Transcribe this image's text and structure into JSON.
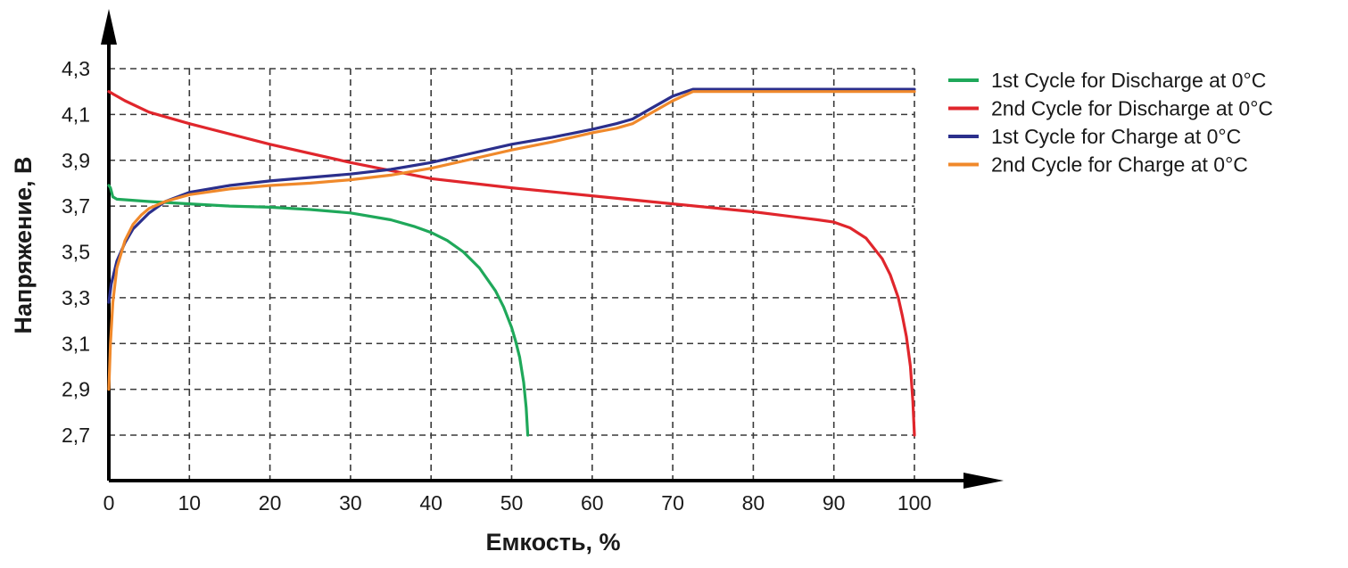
{
  "chart_data": {
    "type": "line",
    "xlabel": "Емкость, %",
    "ylabel": "Напряжение, В",
    "xlim": [
      0,
      100
    ],
    "ylim": [
      2.7,
      4.3
    ],
    "x_ticks": [
      "0",
      "10",
      "20",
      "30",
      "40",
      "50",
      "60",
      "70",
      "80",
      "90",
      "100"
    ],
    "y_ticks": [
      "2,7",
      "2,9",
      "3,1",
      "3,3",
      "3,5",
      "3,7",
      "3,9",
      "4,1",
      "4,3"
    ],
    "grid": true,
    "legend_position": "top-right",
    "series": [
      {
        "name": "1st Cycle for Discharge at 0°C",
        "color": "#1fa85a",
        "x": [
          0,
          0.2,
          0.5,
          1,
          5,
          10,
          15,
          20,
          25,
          30,
          35,
          38,
          40,
          42,
          44,
          46,
          48,
          49,
          50,
          50.5,
          51,
          51.5,
          51.8,
          52
        ],
        "y": [
          3.79,
          3.78,
          3.74,
          3.73,
          3.72,
          3.71,
          3.7,
          3.695,
          3.685,
          3.67,
          3.64,
          3.61,
          3.585,
          3.55,
          3.5,
          3.43,
          3.33,
          3.26,
          3.17,
          3.11,
          3.04,
          2.93,
          2.82,
          2.7
        ]
      },
      {
        "name": "2nd Cycle for Discharge at 0°C",
        "color": "#e0262c",
        "x": [
          0,
          2,
          5,
          10,
          20,
          30,
          35,
          40,
          50,
          60,
          70,
          80,
          88,
          90,
          92,
          94,
          96,
          97,
          98,
          98.5,
          99,
          99.5,
          99.8,
          100
        ],
        "y": [
          4.2,
          4.16,
          4.11,
          4.06,
          3.97,
          3.89,
          3.855,
          3.82,
          3.78,
          3.745,
          3.71,
          3.675,
          3.64,
          3.63,
          3.605,
          3.56,
          3.47,
          3.4,
          3.3,
          3.22,
          3.13,
          3.0,
          2.85,
          2.7
        ]
      },
      {
        "name": "1st Cycle for Charge at 0°C",
        "color": "#2b2f8c",
        "x": [
          0,
          0.3,
          1,
          2,
          3,
          5,
          7,
          10,
          15,
          20,
          25,
          30,
          35,
          40,
          45,
          50,
          55,
          60,
          63,
          65,
          67,
          70,
          72.5,
          80,
          90,
          100
        ],
        "y": [
          3.28,
          3.36,
          3.46,
          3.54,
          3.6,
          3.67,
          3.72,
          3.76,
          3.79,
          3.81,
          3.825,
          3.84,
          3.86,
          3.89,
          3.93,
          3.97,
          4.0,
          4.035,
          4.06,
          4.08,
          4.12,
          4.18,
          4.21,
          4.21,
          4.21,
          4.21
        ]
      },
      {
        "name": "2nd Cycle for Charge at 0°C",
        "color": "#f0892b",
        "x": [
          0,
          0.2,
          0.5,
          1,
          2,
          3,
          4,
          5,
          7,
          10,
          15,
          20,
          25,
          30,
          35,
          40,
          45,
          50,
          55,
          60,
          63,
          65,
          67,
          70,
          72.5,
          80,
          90,
          100
        ],
        "y": [
          2.9,
          3.1,
          3.28,
          3.43,
          3.55,
          3.62,
          3.66,
          3.69,
          3.72,
          3.75,
          3.775,
          3.79,
          3.8,
          3.815,
          3.835,
          3.865,
          3.905,
          3.945,
          3.98,
          4.02,
          4.04,
          4.06,
          4.1,
          4.16,
          4.2,
          4.2,
          4.2,
          4.2
        ]
      }
    ]
  }
}
